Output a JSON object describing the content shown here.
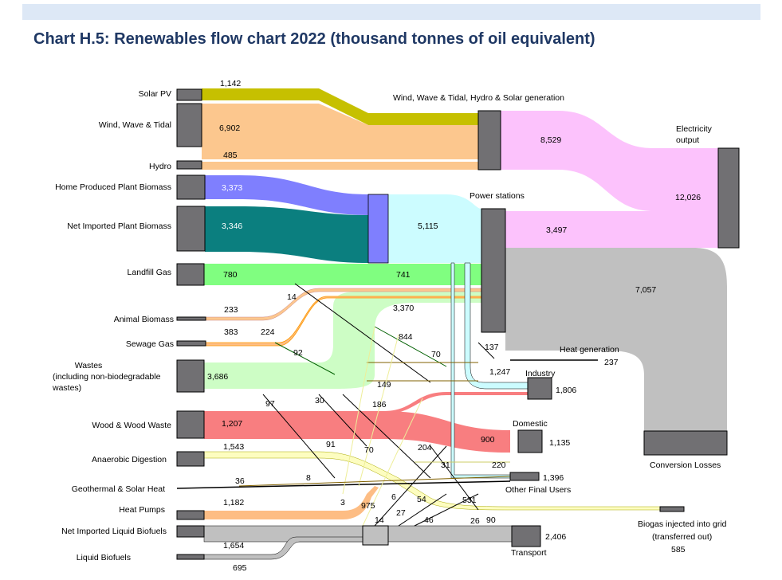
{
  "title": "Chart H.5: Renewables flow chart 2022 (thousand tonnes of oil equivalent)",
  "colors": {
    "solar": "#c6c000",
    "wind": "#fcc78e",
    "hydro": "#fcc78e",
    "plant_biomass": "#7f7ffe",
    "imported_biomass": "#0b7f7f",
    "landfill": "#80fe80",
    "wastes": "#cdfdc5",
    "wood": "#f87e80",
    "anaerobic": "#fdfdc0",
    "heat_pumps": "#fdbd84",
    "liquid": "#c0c0c0",
    "electricity": "#fcc2fc",
    "power_stations": "#ccfcff",
    "losses": "#c0c0c0",
    "node": "#717073"
  },
  "chart_data": {
    "type": "sankey",
    "title": "Chart H.5: Renewables flow chart 2022 (thousand tonnes of oil equivalent)",
    "sources": [
      {
        "label": "Solar PV",
        "value": "1,142"
      },
      {
        "label": "Wind, Wave & Tidal",
        "value": "6,902"
      },
      {
        "label": "Hydro",
        "value": "485"
      },
      {
        "label": "Home Produced Plant Biomass",
        "value": "3,373"
      },
      {
        "label": "Net Imported Plant Biomass",
        "value": "3,346"
      },
      {
        "label": "Landfill Gas",
        "value": "780"
      },
      {
        "label": "Animal Biomass",
        "value": "233"
      },
      {
        "label": "Sewage Gas",
        "value": "383"
      },
      {
        "label": "Wastes",
        "value": "3,686"
      },
      {
        "label": "(including non-biodegradable",
        "value": ""
      },
      {
        "label": "wastes)",
        "value": ""
      },
      {
        "label": "Wood & Wood Waste",
        "value": "1,207"
      },
      {
        "label": "Anaerobic Digestion",
        "value": "1,543"
      },
      {
        "label": "Geothermal & Solar Heat",
        "value": "36"
      },
      {
        "label": "Heat Pumps",
        "value": "1,182"
      },
      {
        "label": "Net Imported Liquid Biofuels",
        "value": ""
      },
      {
        "label": "Liquid Biofuels",
        "value": "1,654"
      }
    ],
    "intermediate": [
      {
        "label": "Wind, Wave & Tidal, Hydro & Solar generation"
      },
      {
        "label": "Power stations"
      },
      {
        "label": "Electricity"
      },
      {
        "label": "output"
      }
    ],
    "outputs": [
      {
        "label": "Electricity output",
        "value": "12,026"
      },
      {
        "label": "Heat generation",
        "value": "237"
      },
      {
        "label": "Industry",
        "value": "1,806"
      },
      {
        "label": "Domestic",
        "value": "1,135"
      },
      {
        "label": "Other Final Users",
        "value": "1,396"
      },
      {
        "label": "Biogas injected into grid",
        "value": "585"
      },
      {
        "label": "(transferred out)",
        "value": ""
      },
      {
        "label": "Transport",
        "value": "2,406"
      },
      {
        "label": "Conversion Losses",
        "value": "7,057"
      }
    ],
    "flow_labels": [
      "8,529",
      "5,115",
      "3,497",
      "741",
      "3,370",
      "14",
      "224",
      "92",
      "844",
      "70",
      "137",
      "1,247",
      "149",
      "97",
      "30",
      "186",
      "204",
      "91",
      "70",
      "900",
      "31",
      "220",
      "8",
      "6",
      "54",
      "531",
      "3",
      "975",
      "27",
      "46",
      "26",
      "90",
      "14",
      "695"
    ]
  }
}
